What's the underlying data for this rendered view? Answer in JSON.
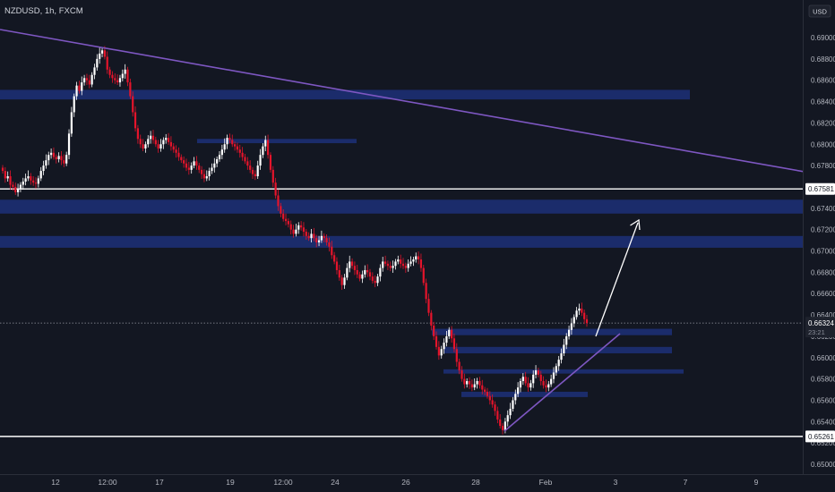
{
  "header": {
    "symbol_line": "NZDUSD, 1h, FXCM"
  },
  "chart_data": {
    "type": "candlestick",
    "currency": "USD",
    "ylim": [
      0.649,
      0.6915
    ],
    "y_ticks": [
      "0.69000",
      "0.68800",
      "0.68600",
      "0.68400",
      "0.68200",
      "0.68000",
      "0.67800",
      "0.67600",
      "0.67400",
      "0.67200",
      "0.67000",
      "0.66800",
      "0.66600",
      "0.66400",
      "0.66200",
      "0.66000",
      "0.65800",
      "0.65600",
      "0.65400",
      "0.65200",
      "0.65000"
    ],
    "x_ticks": [
      "12",
      "12:00",
      "17",
      "19",
      "12:00",
      "24",
      "26",
      "28",
      "Feb",
      "3",
      "7",
      "9"
    ],
    "last_price": "0.66324",
    "countdown": "23:21",
    "horizontal_levels": [
      {
        "label": "0.67581",
        "price": 0.67581
      },
      {
        "label": "0.65261",
        "price": 0.65261
      }
    ],
    "zones": [
      {
        "price_top": 0.6851,
        "price_bottom": 0.6842,
        "start": "left-edge",
        "end": "Feb 7"
      },
      {
        "price_top": 0.6805,
        "price_bottom": 0.6801,
        "start": "17",
        "end": "24"
      },
      {
        "price_top": 0.6748,
        "price_bottom": 0.6735,
        "start": "left-edge",
        "end": "right-edge"
      },
      {
        "price_top": 0.6714,
        "price_bottom": 0.6703,
        "start": "left-edge",
        "end": "right-edge"
      },
      {
        "price_top": 0.6627,
        "price_bottom": 0.6621,
        "start": "27",
        "end": "Feb 7"
      },
      {
        "price_top": 0.661,
        "price_bottom": 0.6604,
        "start": "27",
        "end": "Feb 7"
      },
      {
        "price_top": 0.6589,
        "price_bottom": 0.6585,
        "start": "27",
        "end": "Feb 7"
      },
      {
        "price_top": 0.6568,
        "price_bottom": 0.6563,
        "start": "28",
        "end": "Feb 3"
      }
    ],
    "trendlines": [
      {
        "kind": "resistance",
        "color": "#7e57c2"
      },
      {
        "kind": "support",
        "color": "#7e57c2"
      }
    ],
    "arrow": {
      "direction": "up",
      "color": "#ffffff"
    },
    "colors": {
      "background": "#131722",
      "up": "#ffffff",
      "down": "#e5142b",
      "zone": "#1b2c6b"
    },
    "candles_close": [
      0.6775,
      0.6768,
      0.677,
      0.6762,
      0.676,
      0.6755,
      0.6758,
      0.6762,
      0.6765,
      0.6768,
      0.677,
      0.6766,
      0.6764,
      0.6763,
      0.6768,
      0.6775,
      0.678,
      0.6785,
      0.679,
      0.6792,
      0.6788,
      0.6786,
      0.6789,
      0.6785,
      0.6782,
      0.679,
      0.681,
      0.683,
      0.6845,
      0.6855,
      0.685,
      0.6858,
      0.6862,
      0.686,
      0.6856,
      0.6865,
      0.6872,
      0.688,
      0.6885,
      0.6888,
      0.6882,
      0.687,
      0.6865,
      0.6862,
      0.686,
      0.6858,
      0.6862,
      0.6866,
      0.687,
      0.6858,
      0.6845,
      0.683,
      0.6815,
      0.6805,
      0.68,
      0.6796,
      0.68,
      0.6805,
      0.6808,
      0.6804,
      0.68,
      0.6796,
      0.68,
      0.6804,
      0.6806,
      0.6802,
      0.6798,
      0.6795,
      0.6792,
      0.6788,
      0.6785,
      0.6782,
      0.6778,
      0.6776,
      0.678,
      0.6784,
      0.678,
      0.6776,
      0.6772,
      0.6768,
      0.677,
      0.6775,
      0.6778,
      0.6782,
      0.6786,
      0.679,
      0.6795,
      0.68,
      0.6806,
      0.6804,
      0.68,
      0.6798,
      0.6795,
      0.6792,
      0.6788,
      0.6784,
      0.678,
      0.6776,
      0.6772,
      0.677,
      0.678,
      0.679,
      0.6798,
      0.6804,
      0.679,
      0.6776,
      0.6764,
      0.6752,
      0.6742,
      0.6735,
      0.673,
      0.6728,
      0.6725,
      0.672,
      0.6716,
      0.672,
      0.6724,
      0.6722,
      0.6718,
      0.6714,
      0.6712,
      0.6716,
      0.6712,
      0.6708,
      0.671,
      0.6714,
      0.6712,
      0.6708,
      0.6704,
      0.6696,
      0.669,
      0.6682,
      0.6675,
      0.6668,
      0.6675,
      0.6684,
      0.669,
      0.6686,
      0.6682,
      0.6678,
      0.6674,
      0.6678,
      0.6682,
      0.668,
      0.6676,
      0.6672,
      0.667,
      0.6676,
      0.6684,
      0.669,
      0.6688,
      0.6686,
      0.6684,
      0.6686,
      0.669,
      0.6692,
      0.6688,
      0.6686,
      0.6684,
      0.6688,
      0.669,
      0.6692,
      0.6695,
      0.6692,
      0.6684,
      0.667,
      0.6655,
      0.6642,
      0.663,
      0.662,
      0.661,
      0.6602,
      0.6608,
      0.6614,
      0.662,
      0.6626,
      0.6618,
      0.6608,
      0.6596,
      0.6588,
      0.658,
      0.6575,
      0.6578,
      0.6575,
      0.6572,
      0.6575,
      0.6578,
      0.6574,
      0.657,
      0.6568,
      0.6564,
      0.656,
      0.6556,
      0.655,
      0.6542,
      0.6536,
      0.6532,
      0.654,
      0.6546,
      0.6552,
      0.656,
      0.6566,
      0.6572,
      0.6578,
      0.6582,
      0.6576,
      0.6572,
      0.6576,
      0.6584,
      0.6588,
      0.6584,
      0.6578,
      0.6574,
      0.6572,
      0.6575,
      0.658,
      0.6586,
      0.6592,
      0.6598,
      0.6604,
      0.6612,
      0.662,
      0.6626,
      0.6632,
      0.6638,
      0.6644,
      0.6646,
      0.6642,
      0.6636,
      0.66324
    ]
  }
}
